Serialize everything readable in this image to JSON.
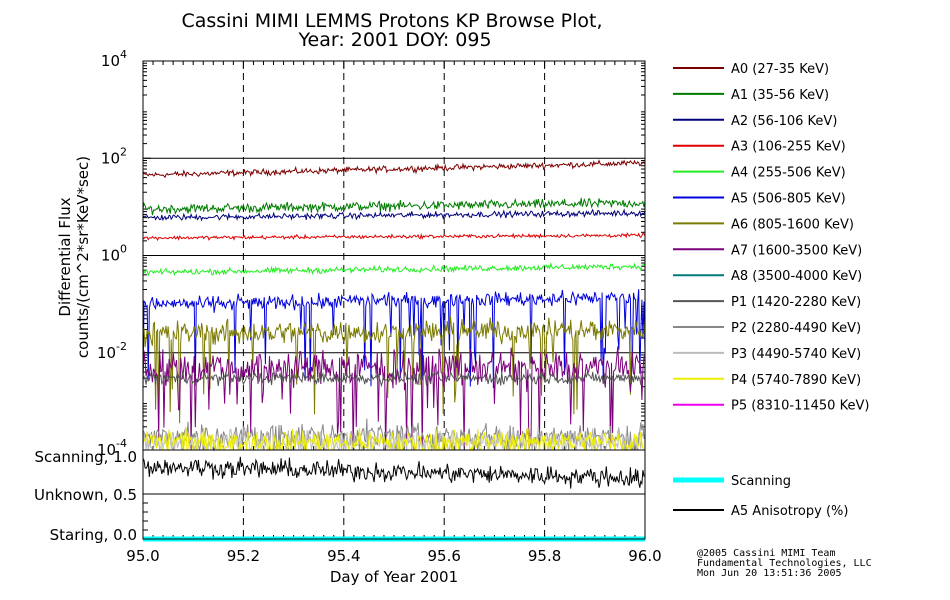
{
  "chart_data": {
    "type": "line",
    "title": "Cassini MIMI LEMMS Protons KP Browse Plot,",
    "subtitle": "Year: 2001 DOY: 095",
    "xlabel": "Day of Year 2001",
    "ylabel_line1": "Differential Flux",
    "ylabel_line2": "counts/(cm^2*sr*KeV*sec)",
    "x_range": [
      95.0,
      96.0
    ],
    "x_ticks": [
      "95.0",
      "95.2",
      "95.4",
      "95.6",
      "95.8",
      "96.0"
    ],
    "x_tick_values": [
      95.0,
      95.2,
      95.4,
      95.6,
      95.8,
      96.0
    ],
    "y_scale": "log",
    "y_range": [
      0.0001,
      10000
    ],
    "y_ticks": [
      {
        "base": "10",
        "exp": "4",
        "value": 10000
      },
      {
        "base": "10",
        "exp": "2",
        "value": 100
      },
      {
        "base": "10",
        "exp": "0",
        "value": 1
      },
      {
        "base": "10",
        "exp": "-2",
        "value": 0.01
      },
      {
        "base": "10",
        "exp": "-4",
        "value": 0.0001
      }
    ],
    "series": [
      {
        "name": "A0 (27-35 KeV)",
        "color": "#7b0000",
        "start": 45,
        "end": 80,
        "noise": 0.05
      },
      {
        "name": "A1 (35-56 KeV)",
        "color": "#007b00",
        "start": 9,
        "end": 12,
        "noise": 0.08
      },
      {
        "name": "A2 (56-106 KeV)",
        "color": "#00007b",
        "start": 6,
        "end": 7.5,
        "noise": 0.05
      },
      {
        "name": "A3 (106-255 KeV)",
        "color": "#e00000",
        "start": 2.3,
        "end": 2.6,
        "noise": 0.03
      },
      {
        "name": "A4 (255-506 KeV)",
        "color": "#22ee22",
        "start": 0.45,
        "end": 0.6,
        "noise": 0.05
      },
      {
        "name": "A5 (506-805 KeV)",
        "color": "#0000dd",
        "start": 0.1,
        "end": 0.14,
        "noise": 0.12
      },
      {
        "name": "A6 (805-1600 KeV)",
        "color": "#7b7b00",
        "start": 0.025,
        "end": 0.03,
        "noise": 0.2
      },
      {
        "name": "A7 (1600-3500 KeV)",
        "color": "#7b007b",
        "start": 0.005,
        "end": 0.005,
        "noise": 0.3
      },
      {
        "name": "A8 (3500-4000 KeV)",
        "color": "#007b7b",
        "start": 0,
        "end": 0,
        "noise": 0
      },
      {
        "name": "P1 (1420-2280 KeV)",
        "color": "#555555",
        "start": 0.003,
        "end": 0.003,
        "noise": 0.1
      },
      {
        "name": "P2 (2280-4490 KeV)",
        "color": "#888888",
        "start": 0.0002,
        "end": 0.0002,
        "noise": 0.2
      },
      {
        "name": "P3 (4490-5740 KeV)",
        "color": "#bbbbbb",
        "start": 0.00015,
        "end": 0.00015,
        "noise": 0.2
      },
      {
        "name": "P4 (5740-7890 KeV)",
        "color": "#eeee00",
        "start": 0.00015,
        "end": 0.00015,
        "noise": 0.2
      },
      {
        "name": "P5 (8310-11450 KeV)",
        "color": "#ee00ee",
        "start": 0,
        "end": 0,
        "noise": 0
      }
    ],
    "lower_panel": {
      "y_labels": [
        "Scanning, 1.0",
        "Unknown, 0.5",
        "Staring, 0.0"
      ],
      "y_tick_values": [
        1.0,
        0.5,
        0.0
      ],
      "y_range": [
        0,
        1.0
      ],
      "series": [
        {
          "name": "Scanning",
          "color": "#00ffff",
          "value": 0.0
        },
        {
          "name": "A5 Anisotropy (%)",
          "color": "#000000",
          "start": 0.85,
          "end": 0.7,
          "noise": 0.1
        }
      ]
    },
    "grid": true,
    "legend_position": "right"
  },
  "credits": {
    "line1": "@2005 Cassini MIMI Team",
    "line2": "Fundamental Technologies, LLC",
    "line3": "Mon Jun 20 13:51:36 2005"
  }
}
